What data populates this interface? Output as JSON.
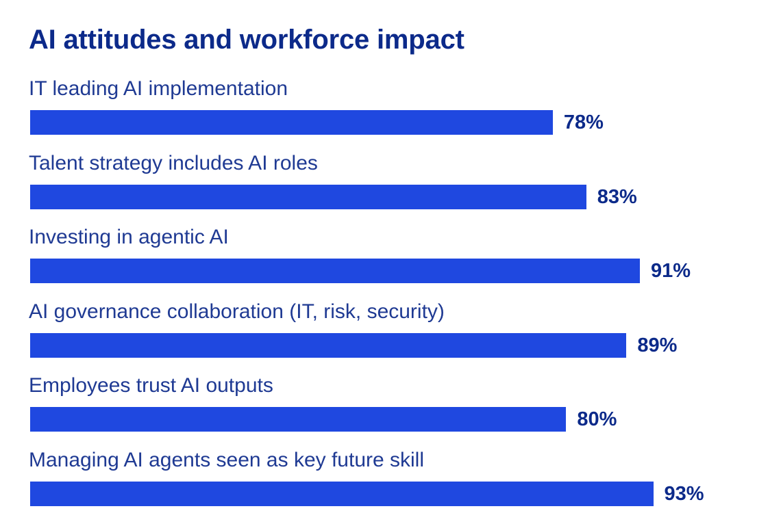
{
  "chart_data": {
    "type": "bar",
    "orientation": "horizontal",
    "title": "AI attitudes and workforce impact",
    "categories": [
      "IT leading AI implementation",
      "Talent strategy includes AI roles",
      "Investing in agentic AI",
      "AI governance collaboration (IT, risk, security)",
      "Employees trust AI outputs",
      "Managing AI agents seen as key future skill"
    ],
    "values": [
      78,
      83,
      91,
      89,
      80,
      93
    ],
    "value_labels": [
      "78%",
      "83%",
      "91%",
      "89%",
      "80%",
      "93%"
    ],
    "xlim": [
      0,
      100
    ],
    "grid": false,
    "colors": {
      "bar": "#1f48e0",
      "title": "#0c2a8a",
      "label": "#1f3a93",
      "value": "#0c2a8a"
    }
  }
}
